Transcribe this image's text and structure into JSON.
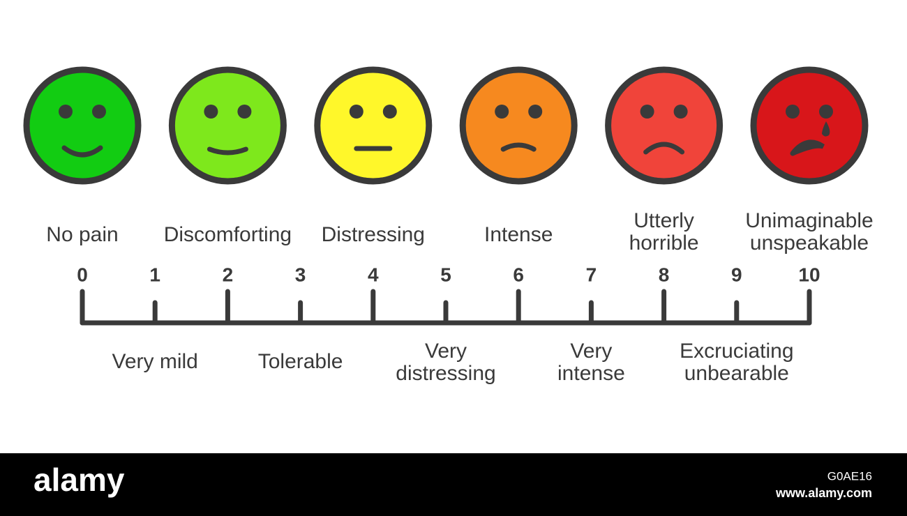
{
  "scale": {
    "numbers": [
      0,
      1,
      2,
      3,
      4,
      5,
      6,
      7,
      8,
      9,
      10
    ]
  },
  "faces": [
    {
      "color": "#12cc12"
    },
    {
      "color": "#7ee81c"
    },
    {
      "color": "#fff72a"
    },
    {
      "color": "#f6891f"
    },
    {
      "color": "#f0443a"
    },
    {
      "color": "#d8161a"
    }
  ],
  "upper_labels": [
    {
      "lines": [
        "No pain"
      ]
    },
    {
      "lines": [
        "Discomforting"
      ]
    },
    {
      "lines": [
        "Distressing"
      ]
    },
    {
      "lines": [
        "Intense"
      ]
    },
    {
      "lines": [
        "Utterly",
        "horrible"
      ]
    },
    {
      "lines": [
        "Unimaginable",
        "unspeakable"
      ]
    }
  ],
  "lower_labels": [
    {
      "lines": [
        "Very mild"
      ]
    },
    {
      "lines": [
        "Tolerable"
      ]
    },
    {
      "lines": [
        "Very",
        "distressing"
      ]
    },
    {
      "lines": [
        "Very",
        "intense"
      ]
    },
    {
      "lines": [
        "Excruciating",
        "unbearable"
      ]
    }
  ],
  "footer": {
    "brand": "alamy",
    "image_id": "G0AE16",
    "url": "www.alamy.com"
  }
}
